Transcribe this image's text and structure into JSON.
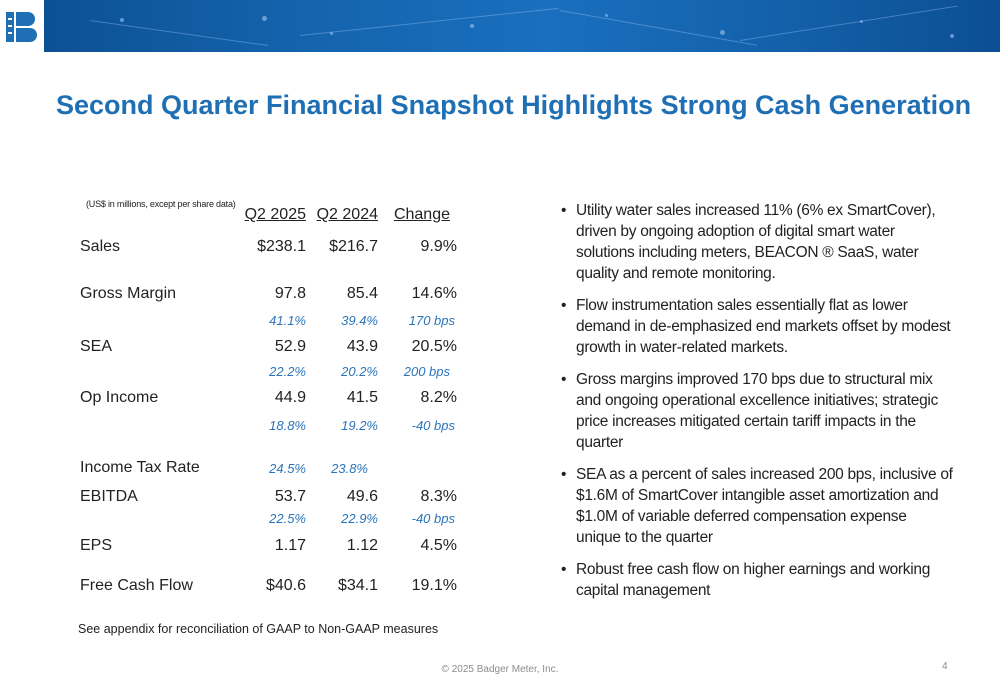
{
  "slide": {
    "title": "Second Quarter Financial Snapshot Highlights Strong Cash Generation",
    "note": "(US$ in millions, except per share data)",
    "footnote": "See appendix for reconciliation of GAAP to Non-GAAP measures",
    "copyright": "© 2025 Badger Meter, Inc.",
    "page_number": "4",
    "brand_color": "#1f6fb5"
  },
  "table": {
    "headers": [
      "Q2 2025",
      "Q2 2024",
      "Change"
    ],
    "rows": [
      {
        "label": "Sales",
        "values": [
          "$238.1",
          "$216.7",
          "9.9%"
        ]
      },
      {
        "label": "Gross Margin",
        "values": [
          "97.8",
          "85.4",
          "14.6%"
        ],
        "percents": [
          "41.1%",
          "39.4%",
          "170 bps"
        ]
      },
      {
        "label": "SEA",
        "values": [
          "52.9",
          "43.9",
          "20.5%"
        ],
        "percents": [
          "22.2%",
          "20.2%",
          "200 bps"
        ]
      },
      {
        "label": "Op Income",
        "values": [
          "44.9",
          "41.5",
          "8.2%"
        ],
        "percents": [
          "18.8%",
          "19.2%",
          "-40 bps"
        ]
      },
      {
        "label": "Income Tax Rate",
        "percents": [
          "24.5%",
          "23.8%",
          ""
        ]
      },
      {
        "label": "EBITDA",
        "values": [
          "53.7",
          "49.6",
          "8.3%"
        ],
        "percents": [
          "22.5%",
          "22.9%",
          "-40 bps"
        ]
      },
      {
        "label": "EPS",
        "values": [
          "1.17",
          "1.12",
          "4.5%"
        ]
      },
      {
        "label": "Free Cash Flow",
        "values": [
          "$40.6",
          "$34.1",
          "19.1%"
        ]
      }
    ]
  },
  "bullets": [
    "Utility water sales increased 11% (6% ex SmartCover), driven by ongoing adoption of digital smart water solutions including meters, BEACON ® SaaS, water quality and remote monitoring.",
    "Flow instrumentation sales essentially flat as lower demand in de-emphasized end markets offset by modest growth in water-related markets.",
    "Gross margins improved 170 bps due to structural mix and ongoing operational excellence initiatives; strategic price increases mitigated certain tariff impacts in the quarter",
    "SEA as a percent of sales increased 200 bps, inclusive of $1.6M of SmartCover intangible asset amortization and $1.0M of variable deferred compensation expense unique to the quarter",
    "Robust free cash flow on higher earnings and working capital management"
  ]
}
